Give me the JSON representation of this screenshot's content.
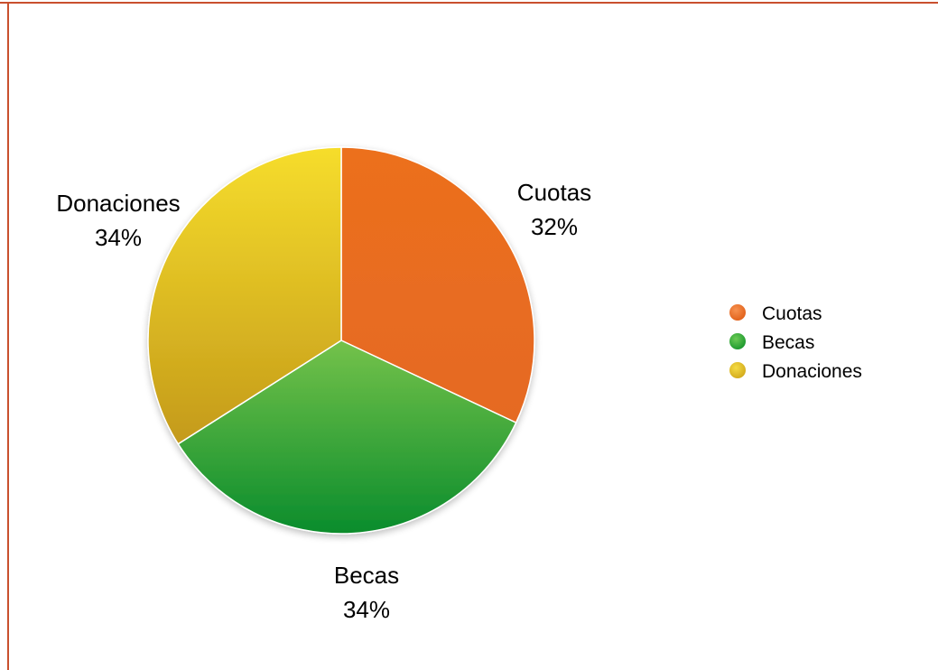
{
  "chart_data": {
    "type": "pie",
    "title": "",
    "slices": [
      {
        "name": "Cuotas",
        "value": 32,
        "label": "32%",
        "color": "#E86C1F"
      },
      {
        "name": "Becas",
        "value": 34,
        "label": "34%",
        "color": "#3DAA3A"
      },
      {
        "name": "Donaciones",
        "value": 34,
        "label": "34%",
        "color": "#E2C323"
      }
    ],
    "legend": {
      "placement": "right",
      "entries": [
        "Cuotas",
        "Becas",
        "Donaciones"
      ]
    }
  },
  "colors": {
    "frame_border": "#C9502E",
    "slice_border": "#FFFFFF"
  }
}
